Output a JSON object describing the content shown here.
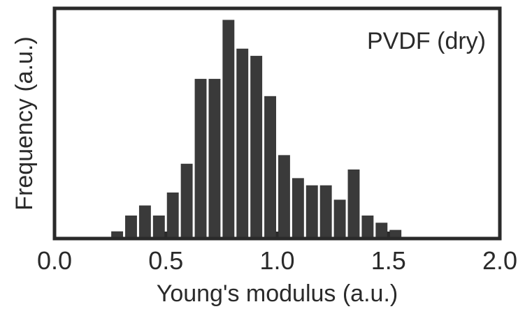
{
  "chart_data": {
    "type": "bar",
    "title": "",
    "annotation": "PVDF (dry)",
    "xlabel": "Young's modulus (a.u.)",
    "ylabel": "Frequency (a.u.)",
    "xlim": [
      0.0,
      2.0
    ],
    "ylim": [
      0,
      16
    ],
    "xticks": [
      "0.0",
      "0.5",
      "1.0",
      "1.5",
      "2.0"
    ],
    "bin_width": 0.0625,
    "x": [
      0.25,
      0.3125,
      0.375,
      0.4375,
      0.5,
      0.5625,
      0.625,
      0.6875,
      0.75,
      0.8125,
      0.875,
      0.9375,
      1.0,
      1.0625,
      1.125,
      1.1875,
      1.25,
      1.3125,
      1.375,
      1.4375,
      1.5,
      1.5625,
      1.625,
      1.6875,
      1.75,
      1.8125
    ],
    "values": [
      0.5,
      1.6,
      2.3,
      1.6,
      3.2,
      5.2,
      11.1,
      11.1,
      15.2,
      13.2,
      12.7,
      9.9,
      5.8,
      4.2,
      3.7,
      3.7,
      2.7,
      4.8,
      1.6,
      1.1,
      0.6,
      0,
      0,
      0,
      0,
      0
    ],
    "grid": false,
    "legend": "none",
    "bar_color": "#3a3a3a"
  }
}
